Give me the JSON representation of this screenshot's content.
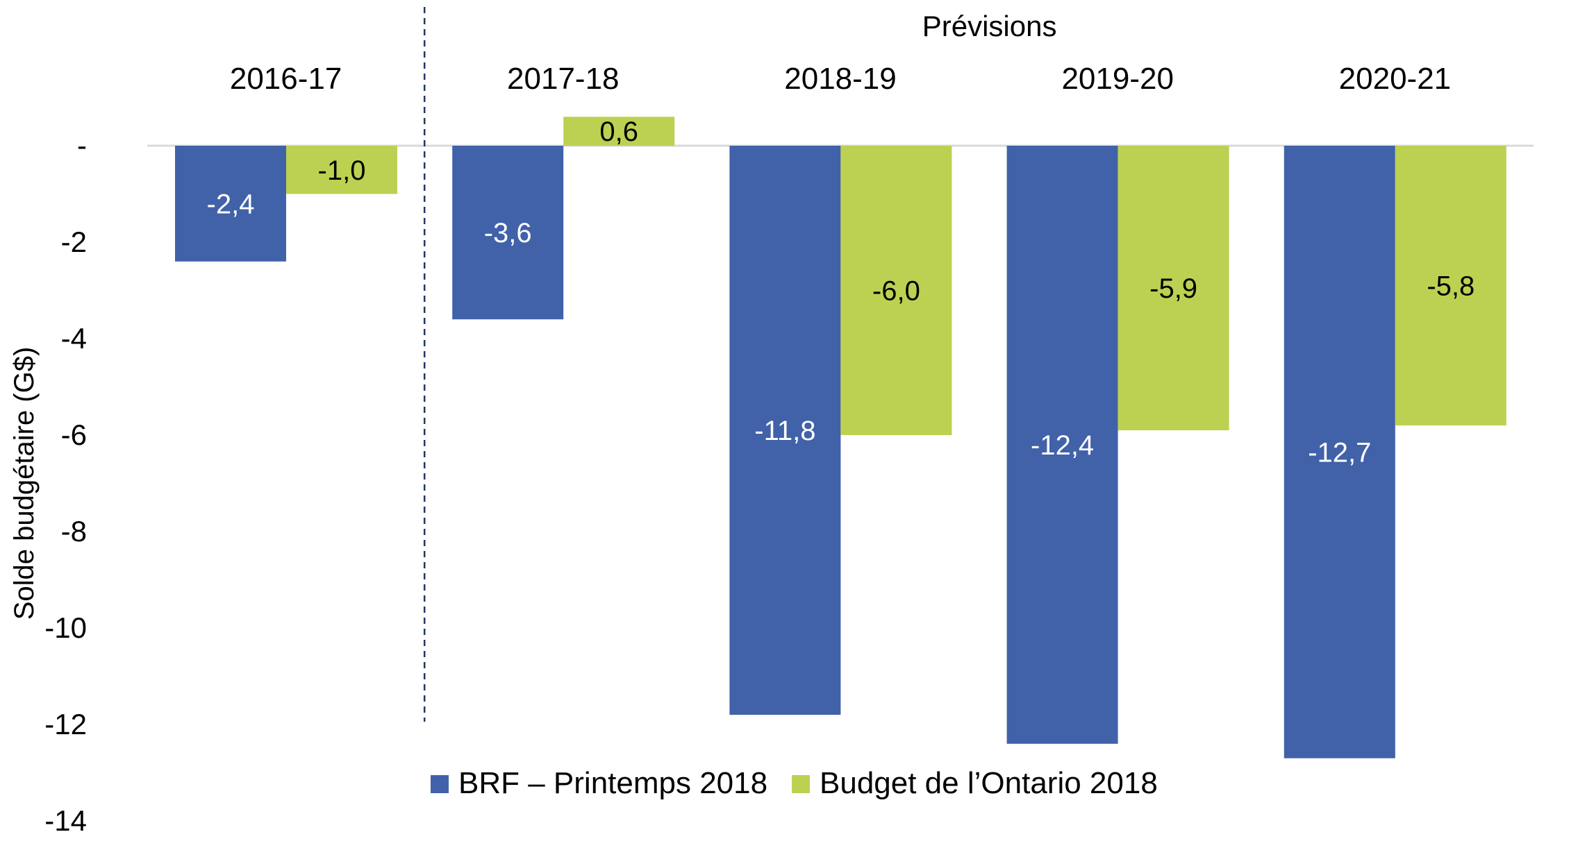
{
  "chart_data": {
    "type": "bar",
    "categories": [
      "2016-17",
      "2017-18",
      "2018-19",
      "2019-20",
      "2020-21"
    ],
    "series": [
      {
        "name": "BRF – Printemps 2018",
        "color": "#4162A9",
        "label_color": "#FFFFFF",
        "values": [
          -2.4,
          -3.6,
          -11.8,
          -12.4,
          -12.7
        ],
        "labels": [
          "-2,4",
          "-3,6",
          "-11,8",
          "-12,4",
          "-12,7"
        ]
      },
      {
        "name": "Budget de l’Ontario 2018",
        "color": "#BCD151",
        "label_color": "#000000",
        "values": [
          -1.0,
          0.6,
          -6.0,
          -5.9,
          -5.8
        ],
        "labels": [
          "-1,0",
          "0,6",
          "-6,0",
          "-5,9",
          "-5,8"
        ]
      }
    ],
    "title": "",
    "xlabel": "",
    "ylabel": "Solde budgétaire (G$)",
    "ylim": [
      -14,
      0
    ],
    "yticks": [
      0,
      -2,
      -4,
      -6,
      -8,
      -10,
      -12,
      -14
    ],
    "ytick_labels": [
      "-",
      "-2",
      "-4",
      "-6",
      "-8",
      "-10",
      "-12",
      "-14"
    ],
    "annotation": "Prévisions",
    "forecast_divider_after_category": "2016-17",
    "gridlines": false,
    "zero_line_color": "#D9D9D9",
    "legend_position": "bottom"
  }
}
